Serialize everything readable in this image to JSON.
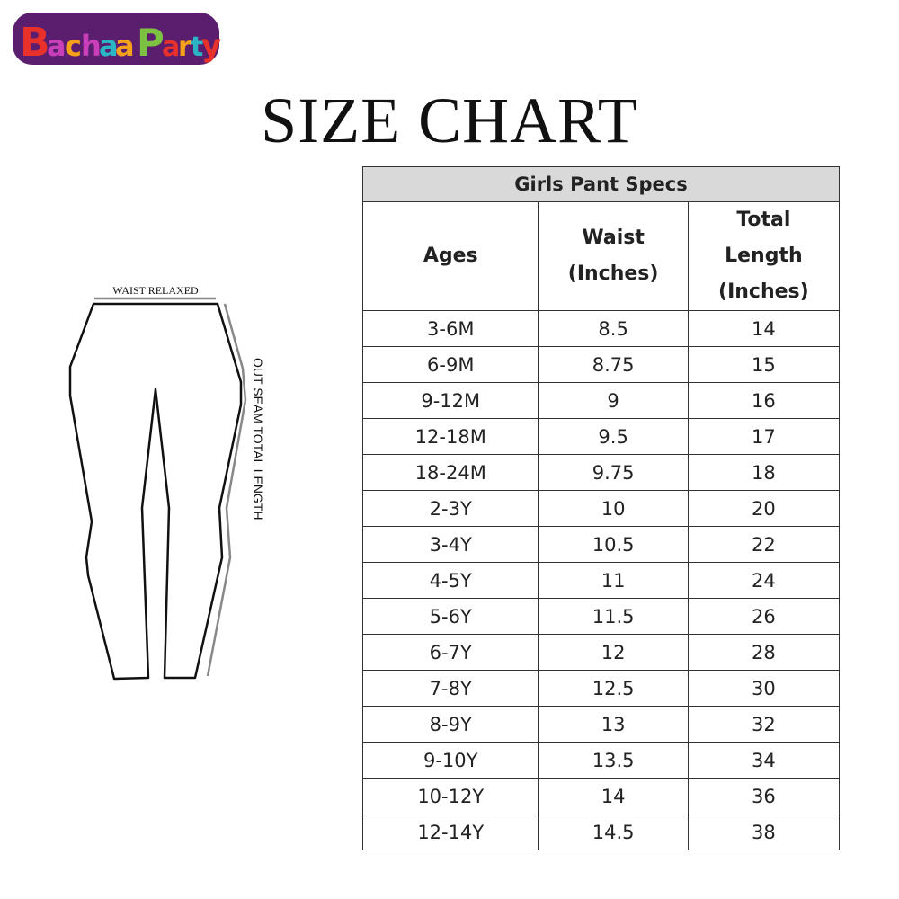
{
  "logo": {
    "text": "BachaaParty",
    "colors": [
      "#e8312a",
      "#c83fb9",
      "#f5a21a",
      "#2bb5c4",
      "#7cc142",
      "#5b1e6e"
    ]
  },
  "title": "SIZE CHART",
  "diagram": {
    "waist_label": "WAIST RELAXED",
    "outseam_label": "OUT SEAM TOTAL LENGTH"
  },
  "table": {
    "caption": "Girls Pant Specs",
    "headers": {
      "ages": "Ages",
      "waist": [
        "Waist",
        "(Inches)"
      ],
      "length": [
        "Total",
        "Length",
        "(Inches)"
      ]
    },
    "rows": [
      [
        "3-6M",
        "8.5",
        "14"
      ],
      [
        "6-9M",
        "8.75",
        "15"
      ],
      [
        "9-12M",
        "9",
        "16"
      ],
      [
        "12-18M",
        "9.5",
        "17"
      ],
      [
        "18-24M",
        "9.75",
        "18"
      ],
      [
        "2-3Y",
        "10",
        "20"
      ],
      [
        "3-4Y",
        "10.5",
        "22"
      ],
      [
        "4-5Y",
        "11",
        "24"
      ],
      [
        "5-6Y",
        "11.5",
        "26"
      ],
      [
        "6-7Y",
        "12",
        "28"
      ],
      [
        "7-8Y",
        "12.5",
        "30"
      ],
      [
        "8-9Y",
        "13",
        "32"
      ],
      [
        "9-10Y",
        "13.5",
        "34"
      ],
      [
        "10-12Y",
        "14",
        "36"
      ],
      [
        "12-14Y",
        "14.5",
        "38"
      ]
    ]
  }
}
